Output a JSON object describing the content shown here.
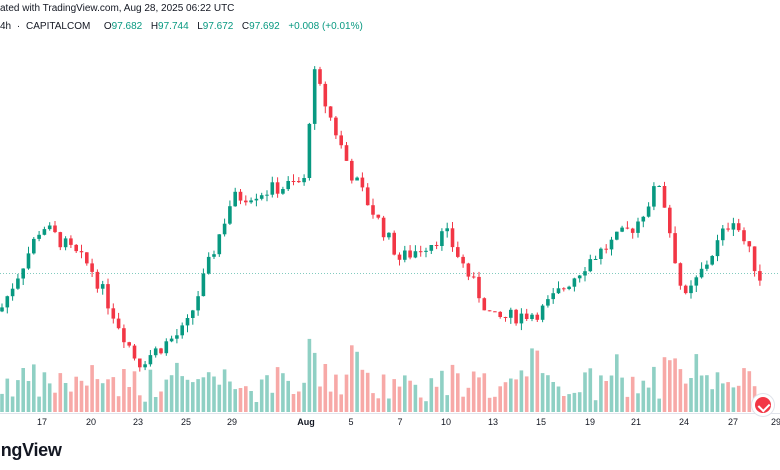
{
  "header": {
    "published": "ated with TradingView.com, Aug 28, 2025 06:22 UTC",
    "interval": "4h",
    "source": "CAPITALCOM",
    "o_label": "O",
    "o_value": "97.682",
    "h_label": "H",
    "h_value": "97.744",
    "l_label": "L",
    "l_value": "97.672",
    "c_label": "C",
    "c_value": "97.692",
    "change": "+0.008 (+0.01%)"
  },
  "branding": {
    "text": "ingView"
  },
  "colors": {
    "up": "#089981",
    "down": "#f23645",
    "up_volume": "#8fd0c4",
    "down_volume": "#f7a9a7",
    "current_price_line": "#089981",
    "axis_text": "#131722"
  },
  "chart_data": {
    "type": "candlestick",
    "interval": "4h",
    "x_axis_labels": [
      "17",
      "20",
      "23",
      "25",
      "29",
      "Aug",
      "5",
      "7",
      "10",
      "13",
      "15",
      "19",
      "21",
      "24",
      "27",
      "29"
    ],
    "current_price": 97.692,
    "y_axis_visible": false,
    "grid": false,
    "volume_panel": true,
    "approx_price_path": [
      {
        "label": "start",
        "close": 97.3
      },
      {
        "label": "17",
        "close": 98.3
      },
      {
        "label": "20",
        "close": 97.8
      },
      {
        "label": "23",
        "close": 96.7
      },
      {
        "label": "25",
        "close": 97.1
      },
      {
        "label": "29",
        "close": 98.6
      },
      {
        "label": "31 peak",
        "close": 100.1
      },
      {
        "label": "Aug",
        "close": 98.8
      },
      {
        "label": "5",
        "close": 98.9
      },
      {
        "label": "7",
        "close": 97.9
      },
      {
        "label": "10",
        "close": 98.2
      },
      {
        "label": "13",
        "close": 97.2
      },
      {
        "label": "15",
        "close": 97.3
      },
      {
        "label": "19",
        "close": 97.9
      },
      {
        "label": "21",
        "close": 98.3
      },
      {
        "label": "22",
        "close": 98.8
      },
      {
        "label": "24",
        "close": 97.4
      },
      {
        "label": "27",
        "close": 98.4
      },
      {
        "label": "28",
        "close": 97.69
      }
    ]
  }
}
